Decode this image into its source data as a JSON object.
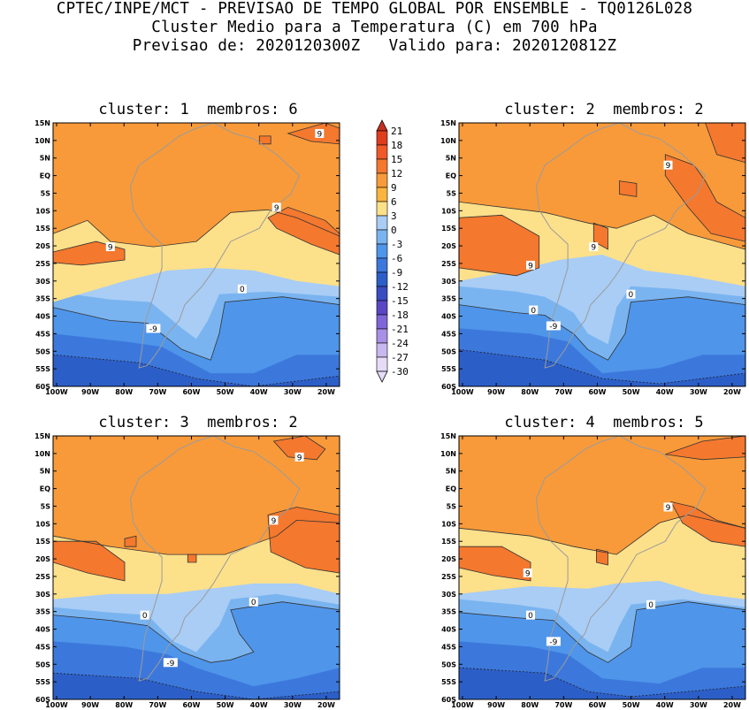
{
  "header": {
    "line1": "CPTEC/INPE/MCT - PREVISAO DE TEMPO GLOBAL POR ENSEMBLE - TQ0126L028",
    "line2": "Cluster Medio para a Temperatura (C) em 700 hPa",
    "line3": "Previsao de: 2020120300Z   Valido para: 2020120812Z"
  },
  "panels": [
    {
      "title": "cluster: 1  membros: 6"
    },
    {
      "title": "cluster: 2  membros: 2"
    },
    {
      "title": "cluster: 3  membros: 2"
    },
    {
      "title": "cluster: 4  membros: 5"
    }
  ],
  "lat_ticks": [
    "15N",
    "10N",
    "5N",
    "EQ",
    "5S",
    "10S",
    "15S",
    "20S",
    "25S",
    "30S",
    "35S",
    "40S",
    "45S",
    "50S",
    "55S",
    "60S"
  ],
  "lon_ticks": [
    "100W",
    "90W",
    "80W",
    "70W",
    "60W",
    "50W",
    "40W",
    "30W",
    "20W"
  ],
  "colorbar": {
    "labels": [
      "21",
      "18",
      "15",
      "12",
      "9",
      "6",
      "3",
      "0",
      "-3",
      "-6",
      "-9",
      "-12",
      "-15",
      "-18",
      "-21",
      "-24",
      "-27",
      "-30"
    ],
    "colors": [
      "#c8301e",
      "#e03c1e",
      "#f05a28",
      "#f4782e",
      "#f89a3a",
      "#fbb43e",
      "#fde08a",
      "#a9cdf5",
      "#7ab4f0",
      "#4f95ea",
      "#3c78dc",
      "#2c5ec8",
      "#3a4cc0",
      "#5a46c4",
      "#7f66d8",
      "#a890e6",
      "#c8b8f0",
      "#e6dcf8"
    ]
  },
  "contour_labels": {
    "p1": [
      "9",
      "9",
      "9",
      "0",
      "-9"
    ],
    "p2": [
      "9",
      "9",
      "9",
      "0",
      "0",
      "-9"
    ],
    "p3": [
      "9",
      "9",
      "0",
      "0",
      "-9"
    ],
    "p4": [
      "9",
      "9",
      "0",
      "0",
      "-9"
    ]
  },
  "chart_data": {
    "type": "map",
    "variable": "Temperatura (C) em 700 hPa",
    "lat_range": [
      "60S",
      "15N"
    ],
    "lon_range": [
      "100W",
      "15W"
    ],
    "contour_levels": [
      21,
      18,
      15,
      12,
      9,
      6,
      3,
      0,
      -3,
      -6,
      -9,
      -12,
      -15,
      -18,
      -21,
      -24,
      -27,
      -30
    ]
  }
}
